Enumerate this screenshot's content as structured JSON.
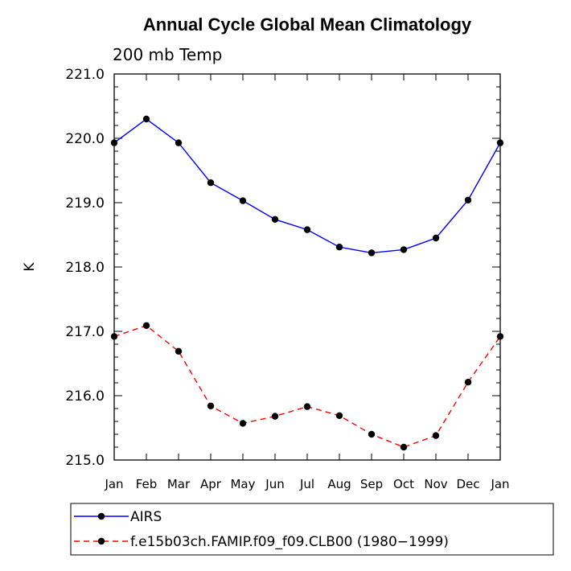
{
  "chart_data": {
    "type": "line",
    "title": "Annual Cycle Global Mean Climatology",
    "subtitle": "200 mb Temp",
    "xlabel": "",
    "ylabel": "K",
    "categories": [
      "Jan",
      "Feb",
      "Mar",
      "Apr",
      "May",
      "Jun",
      "Jul",
      "Aug",
      "Sep",
      "Oct",
      "Nov",
      "Dec",
      "Jan"
    ],
    "ylim": [
      215.0,
      221.0
    ],
    "y_ticks": [
      215.0,
      216.0,
      217.0,
      218.0,
      219.0,
      220.0,
      221.0
    ],
    "y_tick_labels": [
      "215.0",
      "216.0",
      "217.0",
      "218.0",
      "219.0",
      "220.0",
      "221.0"
    ],
    "series": [
      {
        "name": "AIRS",
        "color": "#0000ff",
        "dash": "solid",
        "values": [
          219.93,
          220.3,
          219.93,
          219.31,
          219.03,
          218.74,
          218.58,
          218.31,
          218.22,
          218.27,
          218.45,
          219.04,
          219.93
        ]
      },
      {
        "name": "f.e15b03ch.FAMIP.f09_f09.CLB00 (1980−1999)",
        "color": "#ff0000",
        "dash": "dashed",
        "values": [
          216.92,
          217.09,
          216.69,
          215.84,
          215.57,
          215.68,
          215.83,
          215.69,
          215.4,
          215.2,
          215.38,
          216.21,
          216.92
        ]
      }
    ],
    "legend_position": "bottom"
  }
}
